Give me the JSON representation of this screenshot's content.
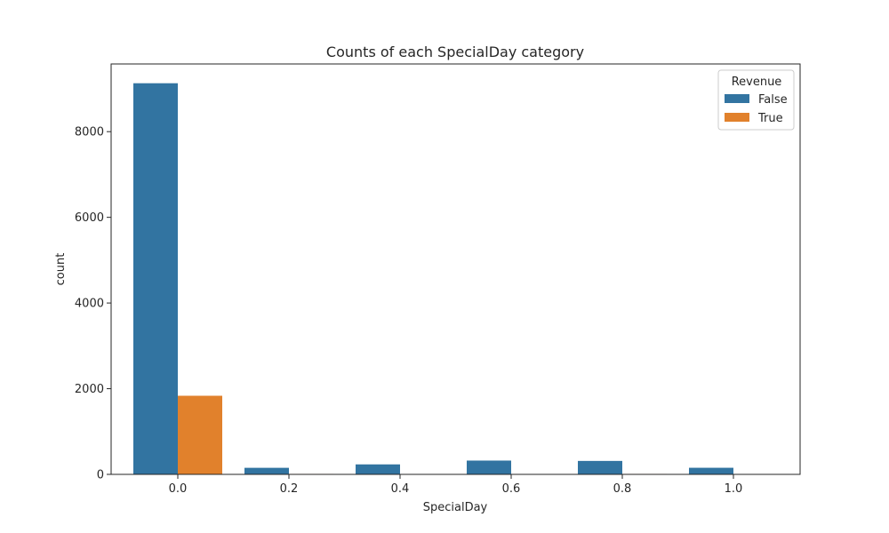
{
  "chart_data": {
    "type": "bar",
    "title": "Counts of each SpecialDay category",
    "xlabel": "SpecialDay",
    "ylabel": "count",
    "categories": [
      "0.0",
      "0.2",
      "0.4",
      "0.6",
      "0.8",
      "1.0"
    ],
    "ylim": [
      0,
      9580
    ],
    "yticks": [
      0,
      2000,
      4000,
      6000,
      8000
    ],
    "legend": {
      "title": "Revenue",
      "position": "top-right"
    },
    "series": [
      {
        "name": "False",
        "color": "#3274a1",
        "values": [
          9130,
          153,
          233,
          322,
          314,
          154
        ]
      },
      {
        "name": "True",
        "color": "#e1812c",
        "values": [
          1835,
          11,
          10,
          10,
          11,
          0
        ]
      }
    ]
  }
}
